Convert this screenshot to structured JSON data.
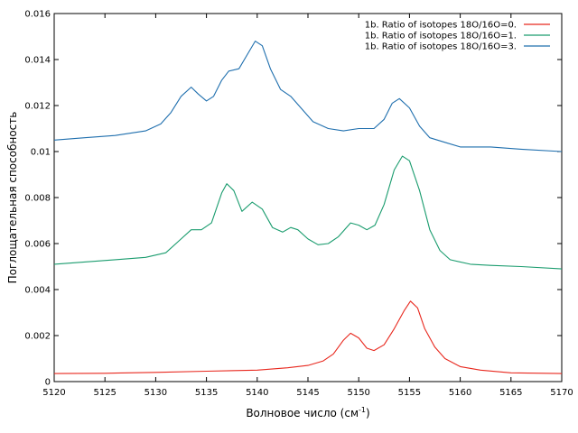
{
  "chart_data": {
    "type": "line",
    "title": "",
    "xlabel": "Волновое число (см",
    "xlabel_sup": "-1",
    "xlabel_close": ")",
    "ylabel": "Поглощательная способность",
    "xlim": [
      5120,
      5170
    ],
    "ylim": [
      0,
      0.016
    ],
    "xticks": [
      "5120",
      "5125",
      "5130",
      "5135",
      "5140",
      "5145",
      "5150",
      "5155",
      "5160",
      "5165",
      "5170"
    ],
    "yticks": [
      "0",
      "0.002",
      "0.004",
      "0.006",
      "0.008",
      "0.01",
      "0.012",
      "0.014",
      "0.016"
    ],
    "grid": false,
    "legend_position": "top-right",
    "series": [
      {
        "name": "1b. Ratio of isotopes 18O/16O=0.",
        "color": "#e8281e",
        "points": [
          [
            5120,
            0.00035
          ],
          [
            5125,
            0.00036
          ],
          [
            5130,
            0.0004
          ],
          [
            5135,
            0.00045
          ],
          [
            5140,
            0.0005
          ],
          [
            5143,
            0.0006
          ],
          [
            5145,
            0.0007
          ],
          [
            5146.5,
            0.0009
          ],
          [
            5147.5,
            0.0012
          ],
          [
            5148.5,
            0.0018
          ],
          [
            5149.2,
            0.0021
          ],
          [
            5150,
            0.0019
          ],
          [
            5150.8,
            0.00145
          ],
          [
            5151.5,
            0.00135
          ],
          [
            5152.5,
            0.0016
          ],
          [
            5153.5,
            0.0023
          ],
          [
            5154.5,
            0.0031
          ],
          [
            5155.1,
            0.0035
          ],
          [
            5155.8,
            0.0032
          ],
          [
            5156.5,
            0.0023
          ],
          [
            5157.5,
            0.0015
          ],
          [
            5158.5,
            0.001
          ],
          [
            5160,
            0.00065
          ],
          [
            5162,
            0.0005
          ],
          [
            5165,
            0.00038
          ],
          [
            5170,
            0.00035
          ]
        ]
      },
      {
        "name": "1b. Ratio of isotopes 18O/16O=1.",
        "color": "#1a9c6e",
        "points": [
          [
            5120,
            0.0051
          ],
          [
            5123,
            0.0052
          ],
          [
            5126,
            0.0053
          ],
          [
            5129,
            0.0054
          ],
          [
            5131,
            0.0056
          ],
          [
            5132.5,
            0.0062
          ],
          [
            5133.5,
            0.0066
          ],
          [
            5134.5,
            0.0066
          ],
          [
            5135.5,
            0.0069
          ],
          [
            5136.5,
            0.0082
          ],
          [
            5137,
            0.0086
          ],
          [
            5137.7,
            0.0083
          ],
          [
            5138.5,
            0.0074
          ],
          [
            5139.5,
            0.0078
          ],
          [
            5140.5,
            0.0075
          ],
          [
            5141.5,
            0.0067
          ],
          [
            5142.5,
            0.0065
          ],
          [
            5143.3,
            0.0067
          ],
          [
            5144,
            0.0066
          ],
          [
            5145,
            0.0062
          ],
          [
            5146,
            0.00595
          ],
          [
            5147,
            0.006
          ],
          [
            5148,
            0.0063
          ],
          [
            5149.2,
            0.0069
          ],
          [
            5150,
            0.0068
          ],
          [
            5150.8,
            0.0066
          ],
          [
            5151.6,
            0.0068
          ],
          [
            5152.5,
            0.0077
          ],
          [
            5153.5,
            0.0092
          ],
          [
            5154.3,
            0.0098
          ],
          [
            5155,
            0.0096
          ],
          [
            5156,
            0.0083
          ],
          [
            5157,
            0.0066
          ],
          [
            5158,
            0.0057
          ],
          [
            5159,
            0.0053
          ],
          [
            5161,
            0.0051
          ],
          [
            5163,
            0.00505
          ],
          [
            5166,
            0.005
          ],
          [
            5170,
            0.0049
          ]
        ]
      },
      {
        "name": "1b. Ratio of isotopes 18O/16O=3.",
        "color": "#1f6fae",
        "points": [
          [
            5120,
            0.0105
          ],
          [
            5123,
            0.0106
          ],
          [
            5126,
            0.0107
          ],
          [
            5129,
            0.0109
          ],
          [
            5130.5,
            0.0112
          ],
          [
            5131.5,
            0.0117
          ],
          [
            5132.5,
            0.0124
          ],
          [
            5133.5,
            0.0128
          ],
          [
            5134.2,
            0.0125
          ],
          [
            5135,
            0.0122
          ],
          [
            5135.7,
            0.0124
          ],
          [
            5136.5,
            0.0131
          ],
          [
            5137.2,
            0.0135
          ],
          [
            5138.2,
            0.0136
          ],
          [
            5139,
            0.0142
          ],
          [
            5139.8,
            0.0148
          ],
          [
            5140.5,
            0.0146
          ],
          [
            5141.3,
            0.0136
          ],
          [
            5142.3,
            0.0127
          ],
          [
            5143.3,
            0.0124
          ],
          [
            5144.5,
            0.0118
          ],
          [
            5145.5,
            0.0113
          ],
          [
            5147,
            0.011
          ],
          [
            5148.5,
            0.0109
          ],
          [
            5150,
            0.011
          ],
          [
            5151.5,
            0.011
          ],
          [
            5152.5,
            0.0114
          ],
          [
            5153.3,
            0.0121
          ],
          [
            5154,
            0.0123
          ],
          [
            5155,
            0.0119
          ],
          [
            5156,
            0.0111
          ],
          [
            5157,
            0.0106
          ],
          [
            5158.5,
            0.0104
          ],
          [
            5160,
            0.0102
          ],
          [
            5163,
            0.0102
          ],
          [
            5166,
            0.0101
          ],
          [
            5170,
            0.01
          ]
        ]
      }
    ]
  }
}
